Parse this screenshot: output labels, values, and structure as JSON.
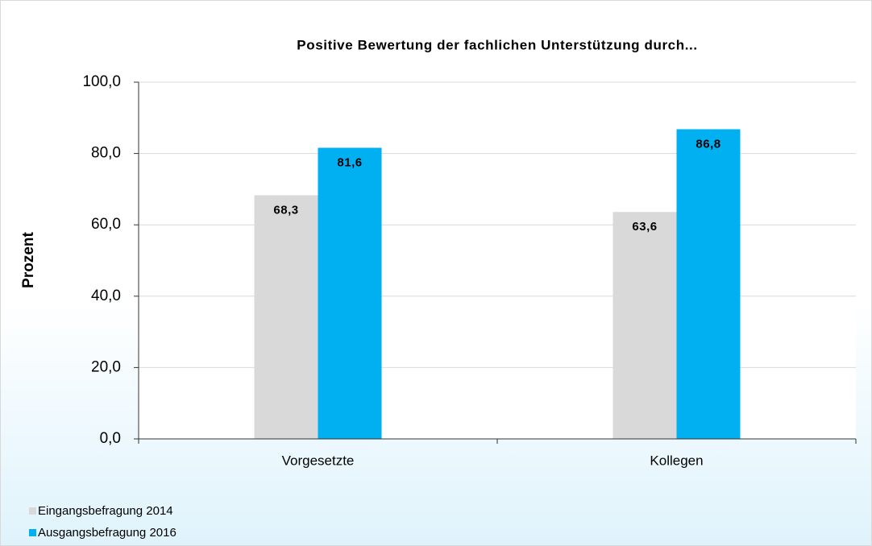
{
  "chart_data": {
    "type": "bar",
    "title": "Positive Bewertung der fachlichen Unterstützung durch...",
    "y_label": "Prozent",
    "categories": [
      "Vorgesetzte",
      "Kollegen"
    ],
    "series": [
      {
        "name": "Eingangsbefragung 2014",
        "color": "#d9d9d9",
        "values": [
          68.3,
          63.6
        ],
        "value_labels": [
          "68,3",
          "63,6"
        ]
      },
      {
        "name": "Ausgangsbefragung 2016",
        "color": "#00b0f0",
        "values": [
          81.6,
          86.8
        ],
        "value_labels": [
          "81,6",
          "86,8"
        ]
      }
    ],
    "ylim": [
      0,
      100
    ],
    "yticks": [
      {
        "value": 0,
        "label": "0,0"
      },
      {
        "value": 20,
        "label": "20,0"
      },
      {
        "value": 40,
        "label": "40,0"
      },
      {
        "value": 60,
        "label": "60,0"
      },
      {
        "value": 80,
        "label": "80,0"
      },
      {
        "value": 100,
        "label": "100,0"
      }
    ],
    "grid": true,
    "legend": "bottom-left"
  }
}
